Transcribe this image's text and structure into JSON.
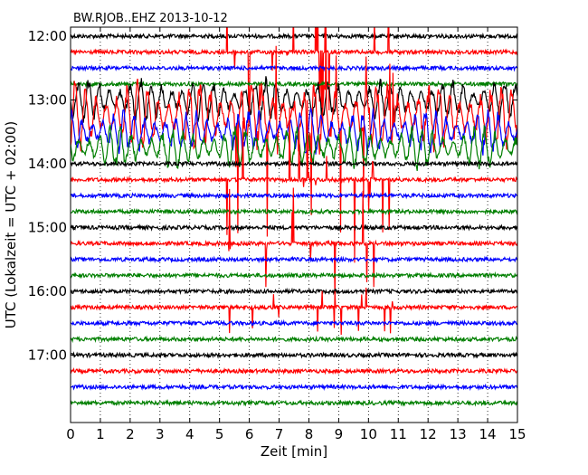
{
  "chart_data": {
    "type": "line",
    "title": "BW.RJOB..EHZ 2013-10-12",
    "xlabel": "Zeit  [min]",
    "ylabel": "UTC (Lokalzeit = UTC + 02:00)",
    "xlim": [
      0,
      15
    ],
    "x_ticks": [
      "0",
      "1",
      "2",
      "3",
      "4",
      "5",
      "6",
      "7",
      "8",
      "9",
      "10",
      "11",
      "12",
      "13",
      "14",
      "15"
    ],
    "y_ticks": [
      {
        "label": "12:00",
        "row": 0
      },
      {
        "label": "13:00",
        "row": 4
      },
      {
        "label": "14:00",
        "row": 8
      },
      {
        "label": "15:00",
        "row": 12
      },
      {
        "label": "16:00",
        "row": 16
      },
      {
        "label": "17:00",
        "row": 20
      }
    ],
    "rows_per_hour": 4,
    "minutes_per_row": 15,
    "grid": {
      "vertical_dotted_every_min": 1,
      "on": true
    },
    "color_cycle": [
      "#000000",
      "#ff0000",
      "#0000ff",
      "#007f00"
    ],
    "trace_count": 24,
    "event": {
      "description_hidden": true,
      "start_row": 4,
      "end_row": 8,
      "start_min": 0.1,
      "end_min": 15
    },
    "noise_level": 0.12,
    "big_spikes": [
      {
        "row": 1,
        "x_min": 5.2,
        "x_max": 11.0
      }
    ]
  }
}
